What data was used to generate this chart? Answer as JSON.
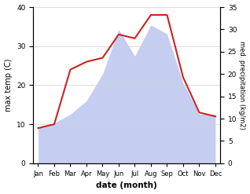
{
  "months": [
    "Jan",
    "Feb",
    "Mar",
    "Apr",
    "May",
    "Jun",
    "Jul",
    "Aug",
    "Sep",
    "Oct",
    "Nov",
    "Dec"
  ],
  "temperature": [
    9,
    10,
    24,
    26,
    27,
    33,
    32,
    38,
    38,
    22,
    13,
    12
  ],
  "precipitation": [
    8,
    9,
    11,
    14,
    20,
    30,
    24,
    31,
    29,
    18,
    11,
    11
  ],
  "temp_color": "#cc2222",
  "precip_fill_color": "#c5cef0",
  "temp_ylim": [
    0,
    40
  ],
  "precip_ylim": [
    0,
    35
  ],
  "xlabel": "date (month)",
  "ylabel_left": "max temp (C)",
  "ylabel_right": "med. precipitation (kg/m2)",
  "temp_yticks": [
    0,
    10,
    20,
    30,
    40
  ],
  "precip_yticks": [
    0,
    5,
    10,
    15,
    20,
    25,
    30,
    35
  ],
  "bg_color": "#ffffff",
  "grid_color": "#d0d0d0"
}
